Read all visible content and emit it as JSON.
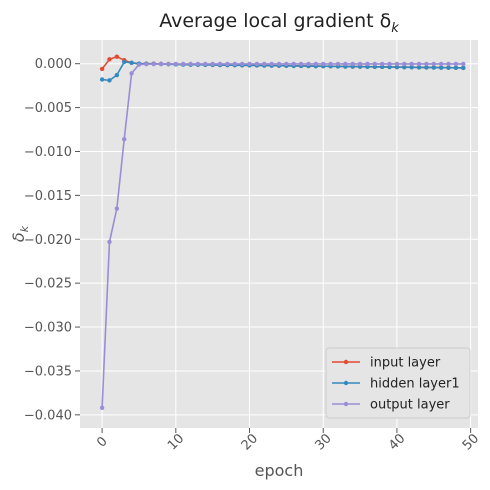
{
  "chart_data": {
    "type": "line",
    "title": "Average local gradient δ",
    "title_subscript": "k",
    "xlabel": "epoch",
    "ylabel": "δ",
    "ylabel_subscript": "k",
    "xlim": [
      -3,
      51
    ],
    "ylim": [
      -0.0415,
      0.0027
    ],
    "x_ticks": [
      0,
      10,
      20,
      30,
      40,
      50
    ],
    "x_tick_labels": [
      "0",
      "10",
      "20",
      "30",
      "40",
      "50"
    ],
    "y_ticks": [
      0.0,
      -0.005,
      -0.01,
      -0.015,
      -0.02,
      -0.025,
      -0.03,
      -0.035,
      -0.04
    ],
    "y_tick_labels": [
      "0.000",
      "−0.005",
      "−0.010",
      "−0.015",
      "−0.020",
      "−0.025",
      "−0.030",
      "−0.035",
      "−0.040"
    ],
    "grid": true,
    "legend_position": "lower-right",
    "x": [
      0,
      1,
      2,
      3,
      4,
      5,
      6,
      7,
      8,
      9,
      10,
      11,
      12,
      13,
      14,
      15,
      16,
      17,
      18,
      19,
      20,
      21,
      22,
      23,
      24,
      25,
      26,
      27,
      28,
      29,
      30,
      31,
      32,
      33,
      34,
      35,
      36,
      37,
      38,
      39,
      40,
      41,
      42,
      43,
      44,
      45,
      46,
      47,
      48,
      49
    ],
    "series": [
      {
        "name": "input layer",
        "color": "#E24A33",
        "values": [
          -0.0006,
          0.0005,
          0.0008,
          0.0004,
          0.0001,
          0.0,
          0.0,
          0.0,
          -2e-05,
          -4e-05,
          -6e-05,
          -8e-05,
          -0.0001,
          -0.00011,
          -0.00012,
          -0.00013,
          -0.00014,
          -0.00015,
          -0.00016,
          -0.00017,
          -0.00018,
          -0.00019,
          -0.0002,
          -0.00021,
          -0.00022,
          -0.00023,
          -0.00024,
          -0.00025,
          -0.00026,
          -0.00027,
          -0.00028,
          -0.00029,
          -0.0003,
          -0.00031,
          -0.00032,
          -0.00033,
          -0.00034,
          -0.00035,
          -0.00036,
          -0.00037,
          -0.00038,
          -0.00039,
          -0.0004,
          -0.00041,
          -0.00042,
          -0.00043,
          -0.00044,
          -0.00045,
          -0.00046,
          -0.00047
        ]
      },
      {
        "name": "hidden layer1",
        "color": "#348ABD",
        "values": [
          -0.0018,
          -0.0019,
          -0.0013,
          0.0002,
          0.0001,
          0.0,
          0.0,
          -2e-05,
          -4e-05,
          -6e-05,
          -8e-05,
          -0.0001,
          -0.00011,
          -0.00012,
          -0.00013,
          -0.00014,
          -0.00015,
          -0.00016,
          -0.00017,
          -0.00018,
          -0.00019,
          -0.0002,
          -0.00021,
          -0.00022,
          -0.00023,
          -0.00024,
          -0.00025,
          -0.00026,
          -0.00027,
          -0.00028,
          -0.00029,
          -0.0003,
          -0.00031,
          -0.00032,
          -0.00033,
          -0.00034,
          -0.00035,
          -0.00036,
          -0.00037,
          -0.00038,
          -0.00039,
          -0.0004,
          -0.00041,
          -0.00042,
          -0.00043,
          -0.00044,
          -0.00045,
          -0.00046,
          -0.00047,
          -0.00048
        ]
      },
      {
        "name": "output layer",
        "color": "#988ED5",
        "values": [
          -0.0392,
          -0.0203,
          -0.0165,
          -0.0086,
          -0.0011,
          -0.0001,
          -5e-05,
          -4e-05,
          -3e-05,
          -3e-05,
          -3e-05,
          -3e-05,
          -3e-05,
          -3e-05,
          -3e-05,
          -3e-05,
          -3e-05,
          -3e-05,
          -3e-05,
          -3e-05,
          -3e-05,
          -3e-05,
          -3e-05,
          -3e-05,
          -3e-05,
          -3e-05,
          -3e-05,
          -3e-05,
          -3e-05,
          -3e-05,
          -3e-05,
          -3e-05,
          -3e-05,
          -3e-05,
          -3e-05,
          -3e-05,
          -3e-05,
          -3e-05,
          -3e-05,
          -3e-05,
          -3e-05,
          -3e-05,
          -3e-05,
          -3e-05,
          -3e-05,
          -3e-05,
          -3e-05,
          -3e-05,
          -3e-05,
          -3e-05
        ]
      }
    ]
  }
}
